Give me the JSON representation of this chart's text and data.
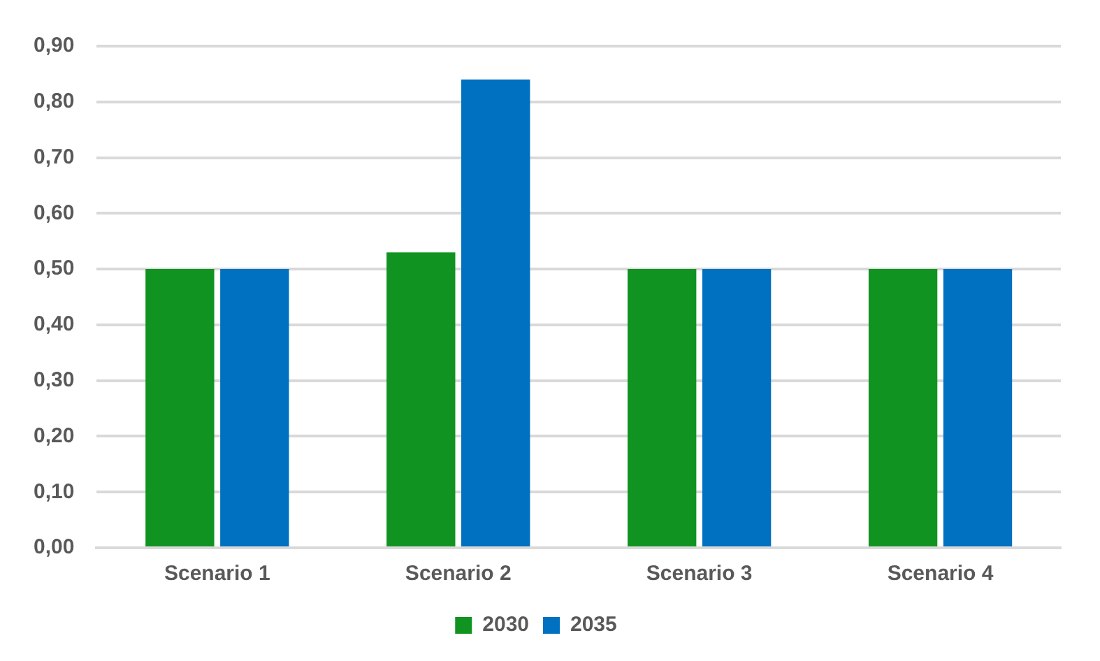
{
  "chart_data": {
    "type": "bar",
    "categories": [
      "Scenario 1",
      "Scenario 2",
      "Scenario 3",
      "Scenario 4"
    ],
    "series": [
      {
        "name": "2030",
        "color": "#109321",
        "values": [
          0.5,
          0.53,
          0.5,
          0.5
        ]
      },
      {
        "name": "2035",
        "color": "#0070c0",
        "values": [
          0.5,
          0.84,
          0.5,
          0.5
        ]
      }
    ],
    "ylim": [
      0,
      0.9
    ],
    "yticks": [
      {
        "value": 0,
        "label": "0,00"
      },
      {
        "value": 0.1,
        "label": "0,10"
      },
      {
        "value": 0.2,
        "label": "0,20"
      },
      {
        "value": 0.3,
        "label": "0,30"
      },
      {
        "value": 0.4,
        "label": "0,40"
      },
      {
        "value": 0.5,
        "label": "0,50"
      },
      {
        "value": 0.6,
        "label": "0,60"
      },
      {
        "value": 0.7,
        "label": "0,70"
      },
      {
        "value": 0.8,
        "label": "0,80"
      },
      {
        "value": 0.9,
        "label": "0,90"
      }
    ],
    "grid": "y",
    "legend": "bottom"
  }
}
